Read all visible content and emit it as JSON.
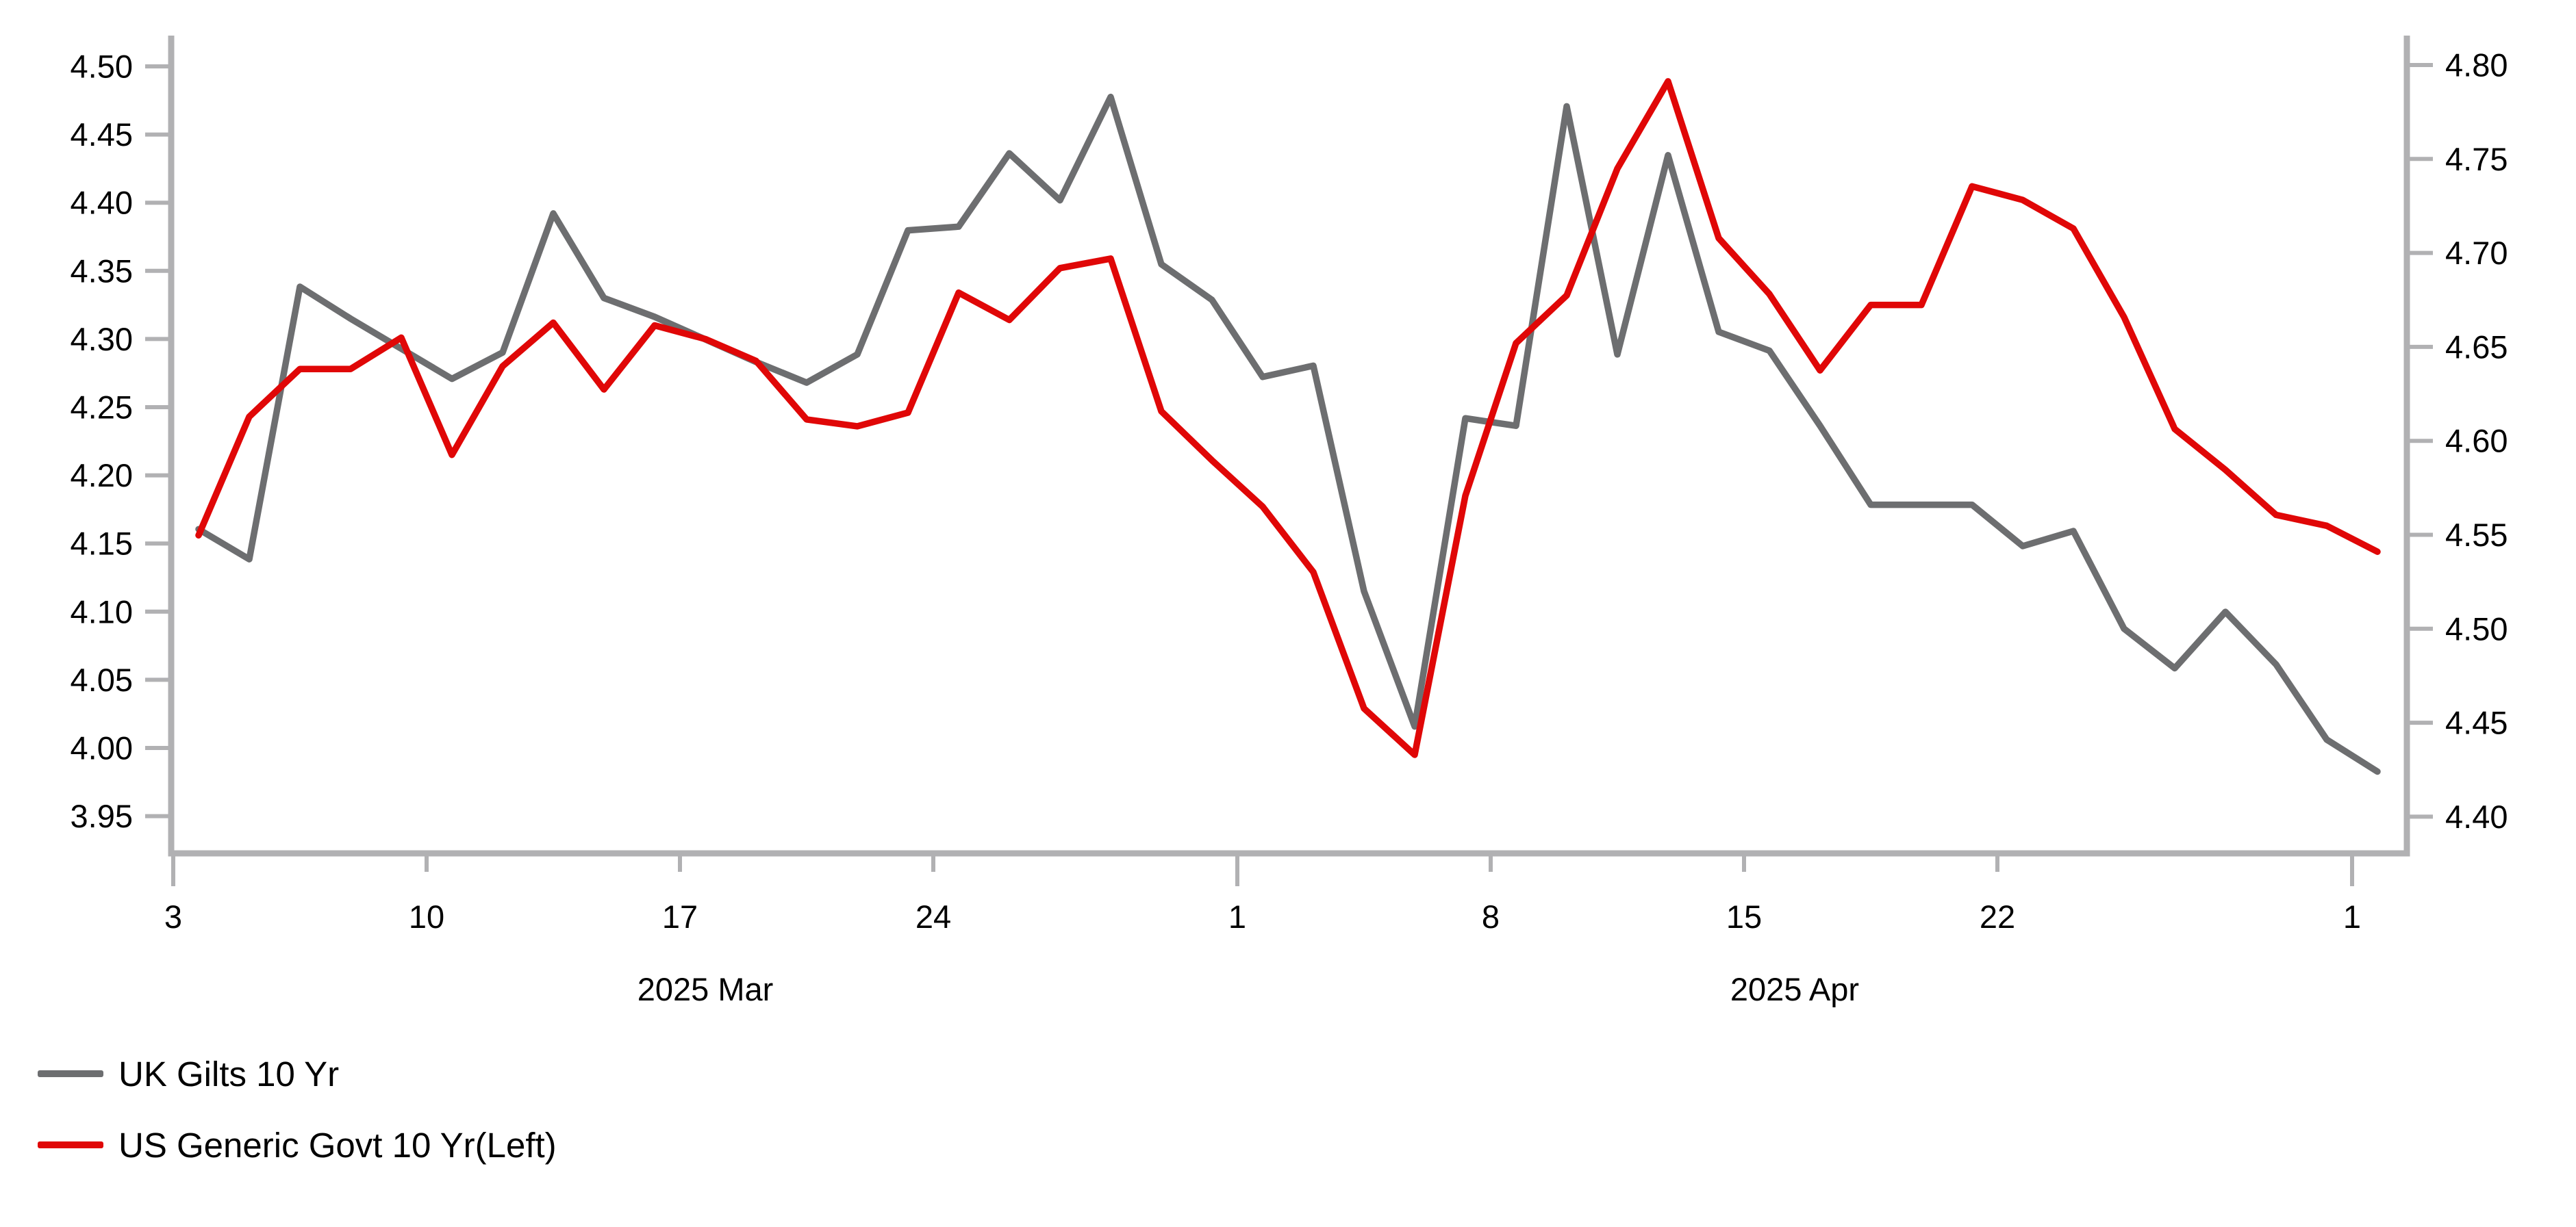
{
  "chart_data": {
    "type": "line",
    "title": "",
    "xlabel": "",
    "ylabel_left": "",
    "ylabel_right": "",
    "grid": false,
    "legend_position": "bottom-left",
    "x_categories": [
      "Mar 3",
      "Mar 4",
      "Mar 5",
      "Mar 6",
      "Mar 7",
      "Mar 10",
      "Mar 11",
      "Mar 12",
      "Mar 13",
      "Mar 14",
      "Mar 17",
      "Mar 18",
      "Mar 19",
      "Mar 20",
      "Mar 21",
      "Mar 24",
      "Mar 25",
      "Mar 26",
      "Mar 27",
      "Mar 28",
      "Mar 31",
      "Apr 1",
      "Apr 2",
      "Apr 3",
      "Apr 4",
      "Apr 7",
      "Apr 8",
      "Apr 9",
      "Apr 10",
      "Apr 11",
      "Apr 14",
      "Apr 15",
      "Apr 16",
      "Apr 17",
      "Apr 18",
      "Apr 21",
      "Apr 22",
      "Apr 23",
      "Apr 24",
      "Apr 25",
      "Apr 28",
      "Apr 29",
      "Apr 30",
      "May 1"
    ],
    "x_ticks": [
      {
        "label": "3",
        "at": "Mar 3",
        "major": true
      },
      {
        "label": "10",
        "at": "Mar 10",
        "major": false
      },
      {
        "label": "17",
        "at": "Mar 17",
        "major": false
      },
      {
        "label": "24",
        "at": "Mar 24",
        "major": false
      },
      {
        "label": "1",
        "at": "Apr 1",
        "major": true
      },
      {
        "label": "8",
        "at": "Apr 8",
        "major": false
      },
      {
        "label": "15",
        "at": "Apr 15",
        "major": false
      },
      {
        "label": "22",
        "at": "Apr 22",
        "major": false
      },
      {
        "label": "1",
        "at": "May 1",
        "major": true
      }
    ],
    "month_labels": [
      {
        "label": "2025 Mar",
        "start": "Mar 3",
        "end": "Apr 1"
      },
      {
        "label": "2025 Apr",
        "start": "Apr 1",
        "end": "May 1"
      }
    ],
    "left_axis": {
      "tick_values": [
        4.5,
        4.45,
        4.4,
        4.35,
        4.3,
        4.25,
        4.2,
        4.15,
        4.1,
        4.05,
        4.0,
        3.95
      ],
      "ylim": [
        3.95,
        4.5
      ]
    },
    "right_axis": {
      "tick_values": [
        4.8,
        4.75,
        4.7,
        4.65,
        4.6,
        4.55,
        4.5,
        4.45,
        4.4
      ],
      "ylim": [
        4.4,
        4.8
      ]
    },
    "series": [
      {
        "name": "UK Gilts 10 Yr",
        "axis": "right",
        "color": "#6d6e70",
        "values": [
          4.553,
          4.537,
          4.682,
          4.665,
          4.649,
          4.633,
          4.647,
          4.721,
          4.676,
          4.666,
          4.654,
          4.642,
          4.631,
          4.646,
          4.712,
          4.714,
          4.753,
          4.728,
          4.783,
          4.694,
          4.675,
          4.634,
          4.64,
          4.52,
          4.448,
          4.612,
          4.608,
          4.778,
          4.646,
          4.752,
          4.658,
          4.648,
          4.608,
          4.566,
          4.566,
          4.566,
          4.544,
          4.552,
          4.5,
          4.479,
          4.509,
          4.481,
          4.441,
          4.424
        ]
      },
      {
        "name": "US Generic Govt 10 Yr(Left)",
        "axis": "left",
        "color": "#e00707",
        "values": [
          4.156,
          4.243,
          4.278,
          4.278,
          4.301,
          4.215,
          4.28,
          4.312,
          4.263,
          4.31,
          4.3,
          4.284,
          4.241,
          4.236,
          4.246,
          4.334,
          4.314,
          4.352,
          4.359,
          4.247,
          4.211,
          4.177,
          4.129,
          4.029,
          3.995,
          4.185,
          4.297,
          4.332,
          4.425,
          4.489,
          4.374,
          4.333,
          4.277,
          4.325,
          4.325,
          4.412,
          4.402,
          4.381,
          4.316,
          4.234,
          4.204,
          4.171,
          4.163,
          4.144
        ]
      }
    ],
    "axis_color": "#b1b1b3",
    "tick_label_color": "#000000"
  }
}
